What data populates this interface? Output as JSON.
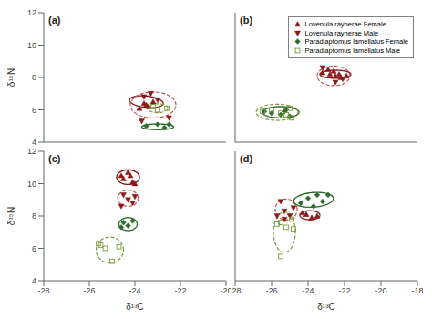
{
  "chart_data": [
    {
      "type": "scatter",
      "title": "(a)",
      "y_label": "δ¹⁵N",
      "tick_labels": "y",
      "xlim": [
        -28,
        -20
      ],
      "ylim": [
        4,
        12
      ],
      "xticks": [
        -28,
        -26,
        -24,
        -22,
        -20
      ],
      "yticks": [
        4,
        6,
        8,
        10,
        12
      ],
      "series": [
        {
          "name": "Lovenula raynerae Female",
          "color": "#8B1A1A",
          "marker": "triangle-up",
          "values": [
            [
              -23.8,
              6.1
            ],
            [
              -23.5,
              6.3
            ],
            [
              -23.2,
              6.5
            ],
            [
              -23.6,
              6.4
            ],
            [
              -23.4,
              6.2
            ]
          ],
          "ellipse": {
            "cx": -23.5,
            "cy": 6.5,
            "w": 1.5,
            "h": 0.7,
            "angle": -10,
            "color": "#8B1A1A",
            "line_style": "solid"
          }
        },
        {
          "name": "Lovenula raynerae Male",
          "color": "#8B1A1A",
          "marker": "triangle-down",
          "values": [
            [
              -23.6,
              6.8
            ],
            [
              -23.3,
              7.0
            ],
            [
              -23.0,
              6.6
            ],
            [
              -23.7,
              5.3
            ],
            [
              -22.5,
              5.5
            ]
          ],
          "ellipse": {
            "cx": -23.2,
            "cy": 6.3,
            "w": 2.0,
            "h": 1.6,
            "angle": 0,
            "color": "#C05050",
            "line_style": "dashed"
          }
        },
        {
          "name": "Paradiaptomus lamellatus Female",
          "color": "#2E6B2E",
          "marker": "diamond",
          "values": [
            [
              -23.5,
              5.0
            ],
            [
              -23.0,
              5.1
            ],
            [
              -22.7,
              4.9
            ],
            [
              -22.5,
              5.1
            ]
          ],
          "ellipse": {
            "cx": -23.0,
            "cy": 4.95,
            "w": 1.4,
            "h": 0.35,
            "angle": 0,
            "color": "#2E6B2E",
            "line_style": "solid"
          }
        },
        {
          "name": "Paradiaptomus lamellatus Male",
          "color": "#7A9A3A",
          "marker": "open-square",
          "values": [
            [
              -23.2,
              6.2
            ],
            [
              -23.0,
              6.0
            ],
            [
              -22.6,
              6.1
            ]
          ],
          "ellipse": {
            "cx": -23.0,
            "cy": 6.1,
            "w": 0.9,
            "h": 0.55,
            "angle": 0,
            "color": "#7A9A3A",
            "line_style": "dashed"
          }
        }
      ]
    },
    {
      "type": "scatter",
      "title": "(b)",
      "tick_labels": false,
      "legend": "upper right",
      "xlim": [
        -28,
        -18
      ],
      "ylim": [
        4,
        12
      ],
      "xticks": [
        -28,
        -26,
        -24,
        -22,
        -20,
        -18
      ],
      "yticks": [
        4,
        6,
        8,
        10,
        12
      ],
      "series": [
        {
          "name": "Lovenula raynerae Female",
          "color": "#8B1A1A",
          "marker": "triangle-up",
          "values": [
            [
              -23.2,
              8.3
            ],
            [
              -22.8,
              8.2
            ],
            [
              -22.5,
              8.1
            ],
            [
              -22.2,
              8.0
            ],
            [
              -22.6,
              8.4
            ],
            [
              -22.9,
              8.5
            ],
            [
              -22.3,
              8.2
            ],
            [
              -21.9,
              8.1
            ]
          ],
          "ellipse": {
            "cx": -22.5,
            "cy": 8.2,
            "w": 1.7,
            "h": 0.5,
            "angle": 0,
            "color": "#8B1A1A",
            "line_style": "solid"
          }
        },
        {
          "name": "Lovenula raynerae Male",
          "color": "#8B1A1A",
          "marker": "triangle-down",
          "values": [
            [
              -23.2,
              8.6
            ],
            [
              -22.5,
              7.7
            ],
            [
              -22.1,
              7.9
            ]
          ],
          "ellipse": {
            "cx": -22.6,
            "cy": 8.1,
            "w": 1.8,
            "h": 1.2,
            "angle": 0,
            "color": "#C05050",
            "line_style": "dashed"
          }
        },
        {
          "name": "Paradiaptomus lamellatus Female",
          "color": "#2E6B2E",
          "marker": "diamond",
          "values": [
            [
              -26.4,
              5.9
            ],
            [
              -26.0,
              5.8
            ],
            [
              -25.5,
              5.7
            ],
            [
              -25.2,
              6.0
            ],
            [
              -25.0,
              5.6
            ],
            [
              -25.3,
              5.9
            ]
          ],
          "ellipse": {
            "cx": -25.5,
            "cy": 5.85,
            "w": 2.0,
            "h": 0.7,
            "angle": 0,
            "color": "#2E6B2E",
            "line_style": "solid"
          }
        },
        {
          "name": "Paradiaptomus lamellatus Male",
          "color": "#7A9A3A",
          "marker": "open-square",
          "values": [
            [
              -26.5,
              5.9
            ],
            [
              -26.0,
              6.0
            ],
            [
              -25.5,
              5.8
            ],
            [
              -25.2,
              5.7
            ],
            [
              -25.0,
              6.1
            ],
            [
              -24.9,
              5.5
            ]
          ],
          "ellipse": {
            "cx": -25.7,
            "cy": 5.85,
            "w": 2.3,
            "h": 1.0,
            "angle": 0,
            "color": "#7A9A3A",
            "line_style": "dashed"
          }
        }
      ]
    },
    {
      "type": "scatter",
      "title": "(c)",
      "x_label": "δ¹³C",
      "y_label": "δ¹⁵N",
      "xlim": [
        -28,
        -20
      ],
      "ylim": [
        4,
        12
      ],
      "xticks": [
        -28,
        -26,
        -24,
        -22,
        -20
      ],
      "yticks": [
        4,
        6,
        8,
        10,
        12
      ],
      "series": [
        {
          "name": "Lovenula raynerae Female",
          "color": "#8B1A1A",
          "marker": "triangle-up",
          "values": [
            [
              -24.5,
              10.3
            ],
            [
              -24.2,
              10.5
            ],
            [
              -24.0,
              10.0
            ],
            [
              -24.3,
              10.7
            ],
            [
              -24.6,
              10.5
            ],
            [
              -24.1,
              10.1
            ]
          ],
          "ellipse": {
            "cx": -24.3,
            "cy": 10.4,
            "w": 1.0,
            "h": 0.9,
            "angle": 0,
            "color": "#8B1A1A",
            "line_style": "solid"
          }
        },
        {
          "name": "Lovenula raynerae Male",
          "color": "#8B1A1A",
          "marker": "triangle-down",
          "values": [
            [
              -24.5,
              9.3
            ],
            [
              -24.3,
              9.0
            ],
            [
              -24.0,
              9.2
            ],
            [
              -24.6,
              8.6
            ],
            [
              -24.1,
              8.8
            ]
          ],
          "ellipse": {
            "cx": -24.3,
            "cy": 9.1,
            "w": 0.9,
            "h": 1.0,
            "angle": 0,
            "color": "#C05050",
            "line_style": "dashed"
          }
        },
        {
          "name": "Paradiaptomus lamellatus Female",
          "color": "#2E6B2E",
          "marker": "diamond",
          "values": [
            [
              -24.5,
              7.6
            ],
            [
              -24.3,
              7.4
            ],
            [
              -24.1,
              7.7
            ],
            [
              -24.6,
              7.3
            ]
          ],
          "ellipse": {
            "cx": -24.3,
            "cy": 7.5,
            "w": 0.8,
            "h": 0.8,
            "angle": 0,
            "color": "#2E6B2E",
            "line_style": "solid"
          }
        },
        {
          "name": "Paradiaptomus lamellatus Male",
          "color": "#7A9A3A",
          "marker": "open-square",
          "values": [
            [
              -25.5,
              6.2
            ],
            [
              -25.3,
              6.0
            ],
            [
              -25.0,
              5.2
            ],
            [
              -24.7,
              6.1
            ],
            [
              -25.6,
              6.3
            ]
          ],
          "ellipse": {
            "cx": -25.1,
            "cy": 5.9,
            "w": 1.2,
            "h": 1.6,
            "angle": 0,
            "color": "#7A9A3A",
            "line_style": "dashed"
          }
        }
      ]
    },
    {
      "type": "scatter",
      "title": "(d)",
      "x_label": "δ¹³C",
      "tick_labels": "x",
      "xlim": [
        -28,
        -18
      ],
      "ylim": [
        4,
        12
      ],
      "xticks": [
        -28,
        -26,
        -24,
        -22,
        -20,
        -18
      ],
      "yticks": [
        4,
        6,
        8,
        10,
        12
      ],
      "series": [
        {
          "name": "Lovenula raynerae Female",
          "color": "#8B1A1A",
          "marker": "triangle-up",
          "values": [
            [
              -24.1,
              8.1
            ],
            [
              -23.8,
              7.9
            ],
            [
              -23.5,
              8.0
            ],
            [
              -24.3,
              8.2
            ]
          ],
          "ellipse": {
            "cx": -23.9,
            "cy": 8.05,
            "w": 1.1,
            "h": 0.55,
            "angle": 0,
            "color": "#8B1A1A",
            "line_style": "solid"
          }
        },
        {
          "name": "Lovenula raynerae Male",
          "color": "#8B1A1A",
          "marker": "triangle-down",
          "values": [
            [
              -25.5,
              8.9
            ],
            [
              -25.3,
              8.3
            ],
            [
              -25.0,
              8.0
            ],
            [
              -25.7,
              8.0
            ],
            [
              -24.8,
              8.5
            ],
            [
              -25.3,
              7.8
            ]
          ],
          "ellipse": {
            "cx": -25.2,
            "cy": 8.4,
            "w": 1.2,
            "h": 1.3,
            "angle": 0,
            "color": "#C05050",
            "line_style": "dashed"
          }
        },
        {
          "name": "Paradiaptomus lamellatus Female",
          "color": "#2E6B2E",
          "marker": "diamond",
          "values": [
            [
              -24.4,
              8.8
            ],
            [
              -24.0,
              9.1
            ],
            [
              -23.5,
              9.3
            ],
            [
              -23.2,
              8.9
            ],
            [
              -23.7,
              8.6
            ],
            [
              -22.9,
              9.3
            ]
          ],
          "ellipse": {
            "cx": -23.7,
            "cy": 9.0,
            "w": 2.2,
            "h": 0.9,
            "angle": 5,
            "color": "#2E6B2E",
            "line_style": "solid"
          }
        },
        {
          "name": "Paradiaptomus lamellatus Male",
          "color": "#7A9A3A",
          "marker": "open-square",
          "values": [
            [
              -25.5,
              7.6
            ],
            [
              -25.2,
              7.3
            ],
            [
              -24.9,
              7.8
            ],
            [
              -25.7,
              7.5
            ],
            [
              -24.8,
              7.2
            ],
            [
              -25.5,
              5.5
            ]
          ],
          "ellipse": {
            "cx": -25.3,
            "cy": 7.0,
            "w": 1.2,
            "h": 2.5,
            "angle": 0,
            "color": "#7A9A3A",
            "line_style": "dashed"
          }
        }
      ]
    }
  ]
}
